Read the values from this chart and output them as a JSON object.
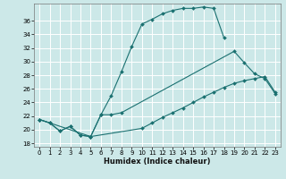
{
  "background_color": "#cce8e8",
  "grid_color": "#ffffff",
  "line_color": "#1a7070",
  "xlabel": "Humidex (Indice chaleur)",
  "xlim": [
    -0.5,
    23.5
  ],
  "ylim": [
    17.5,
    38.5
  ],
  "yticks": [
    18,
    20,
    22,
    24,
    26,
    28,
    30,
    32,
    34,
    36
  ],
  "xticks": [
    0,
    1,
    2,
    3,
    4,
    5,
    6,
    7,
    8,
    9,
    10,
    11,
    12,
    13,
    14,
    15,
    16,
    17,
    18,
    19,
    20,
    21,
    22,
    23
  ],
  "line1_x": [
    0,
    1,
    2,
    3,
    4,
    5,
    6,
    7,
    8,
    9,
    10,
    11,
    12,
    13,
    14,
    15,
    16,
    17,
    18
  ],
  "line1_y": [
    21.5,
    21.0,
    19.8,
    20.5,
    19.2,
    19.0,
    22.2,
    25.0,
    28.5,
    32.2,
    35.5,
    36.2,
    37.0,
    37.5,
    37.8,
    37.8,
    38.0,
    37.8,
    33.5
  ],
  "line2_x": [
    0,
    1,
    2,
    3,
    4,
    5,
    6,
    7,
    8,
    19,
    20,
    21,
    22,
    23
  ],
  "line2_y": [
    21.5,
    21.0,
    19.8,
    20.5,
    19.2,
    19.0,
    22.2,
    22.2,
    22.5,
    31.5,
    29.8,
    28.2,
    27.5,
    25.3
  ],
  "line3_x": [
    0,
    5,
    10,
    11,
    12,
    13,
    14,
    15,
    16,
    17,
    18,
    19,
    20,
    21,
    22,
    23
  ],
  "line3_y": [
    21.5,
    19.0,
    20.2,
    21.0,
    21.8,
    22.5,
    23.2,
    24.0,
    24.8,
    25.5,
    26.2,
    26.8,
    27.2,
    27.5,
    27.8,
    25.5
  ]
}
